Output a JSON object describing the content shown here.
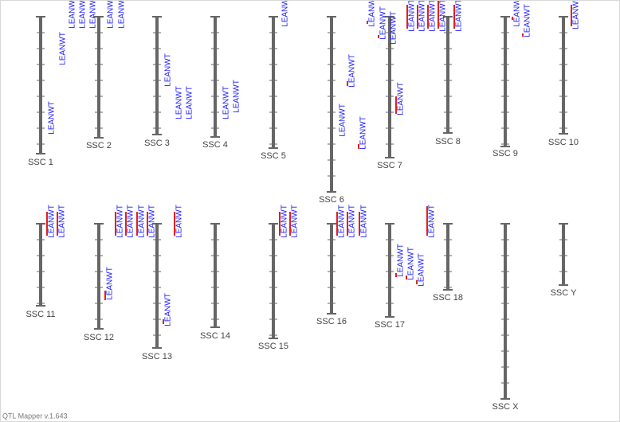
{
  "chromosomes": [
    {
      "label": "SSC 1",
      "qtls": [
        "LEANWT",
        "LEANWT"
      ]
    },
    {
      "label": "SSC 2",
      "qtls": [
        "LEANWT",
        "LEANWT",
        "LEANWT",
        "LEANWT",
        "LEANWT"
      ]
    },
    {
      "label": "SSC 3",
      "qtls": [
        "LEANWT",
        "LEANWT",
        "LEANWT"
      ]
    },
    {
      "label": "SSC 4",
      "qtls": [
        "LEANWT",
        "LEANWT"
      ]
    },
    {
      "label": "SSC 5",
      "qtls": [
        "LEANWT"
      ]
    },
    {
      "label": "SSC 6",
      "qtls": [
        "LEANWT",
        "LEANWT",
        "LEANWT"
      ]
    },
    {
      "label": "SSC 7",
      "qtls": [
        "LEANWT",
        "LEANWT",
        "LEANWT",
        "LEANWT",
        "LEANWT",
        "LEANWT",
        "LEANWT"
      ]
    },
    {
      "label": "SSC 8",
      "qtls": [
        "LEANWT",
        "LEANWT"
      ]
    },
    {
      "label": "SSC 9",
      "qtls": [
        "LEANWT",
        "LEANWT"
      ]
    },
    {
      "label": "SSC 10",
      "qtls": [
        "LEANWT"
      ]
    },
    {
      "label": "SSC 11",
      "qtls": [
        "LEANWT",
        "LEANWT"
      ]
    },
    {
      "label": "SSC 12",
      "qtls": [
        "LEANWT",
        "LEANWT",
        "LEANWT",
        "LEANWT",
        "LEANWT"
      ]
    },
    {
      "label": "SSC 13",
      "qtls": [
        "LEANWT",
        "LEANWT"
      ]
    },
    {
      "label": "SSC 14",
      "qtls": []
    },
    {
      "label": "SSC 15",
      "qtls": [
        "LEANWT",
        "LEANWT"
      ]
    },
    {
      "label": "SSC 16",
      "qtls": [
        "LEANWT",
        "LEANWT",
        "LEANWT"
      ]
    },
    {
      "label": "SSC 17",
      "qtls": [
        "LEANWT",
        "LEANWT",
        "LEANWT",
        "LEANWT"
      ]
    },
    {
      "label": "SSC 18",
      "qtls": []
    },
    {
      "label": "SSC X",
      "qtls": []
    },
    {
      "label": "SSC Y",
      "qtls": []
    }
  ],
  "footer": "QTL Mapper v.1.643"
}
